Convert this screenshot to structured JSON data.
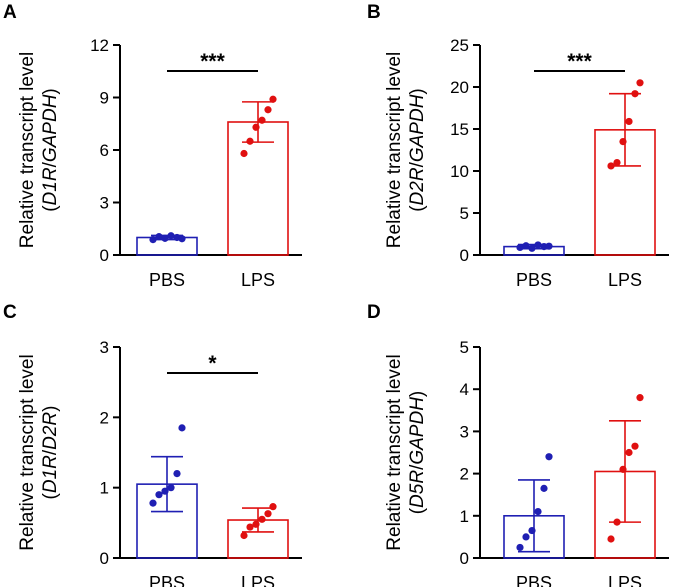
{
  "figure": {
    "colors": {
      "PBS": "#1f1fb3",
      "LPS": "#e01010",
      "axis": "#000000"
    }
  },
  "chart_data": [
    {
      "panel": "A",
      "type": "bar",
      "ylabel_line1": "Relative transcript level",
      "ylabel_gene": "D1R",
      "ylabel_sep": "/",
      "ylabel_ref": "GAPDH",
      "ylim": [
        0,
        12
      ],
      "yticks": [
        0,
        3,
        6,
        9,
        12
      ],
      "categories": [
        "PBS",
        "LPS"
      ],
      "means": [
        1.0,
        7.6
      ],
      "sd": [
        0.12,
        1.15
      ],
      "points": [
        [
          0.88,
          1.05,
          0.95,
          1.1,
          1.0,
          0.93
        ],
        [
          5.8,
          6.5,
          7.3,
          7.7,
          8.3,
          8.9
        ]
      ],
      "significance": "***"
    },
    {
      "panel": "B",
      "type": "bar",
      "ylabel_line1": "Relative transcript level",
      "ylabel_gene": "D2R",
      "ylabel_sep": "/",
      "ylabel_ref": "GAPDH",
      "ylim": [
        0,
        25
      ],
      "yticks": [
        0,
        5,
        10,
        15,
        20,
        25
      ],
      "categories": [
        "PBS",
        "LPS"
      ],
      "means": [
        1.0,
        14.9
      ],
      "sd": [
        0.25,
        4.3
      ],
      "points": [
        [
          0.9,
          1.1,
          0.8,
          1.2,
          1.0,
          1.05
        ],
        [
          10.6,
          11.0,
          13.5,
          15.9,
          19.2,
          20.5
        ]
      ],
      "significance": "***"
    },
    {
      "panel": "C",
      "type": "bar",
      "ylabel_line1": "Relative transcript level",
      "ylabel_gene": "D1R",
      "ylabel_sep": "/",
      "ylabel_ref": "D2R",
      "ylim": [
        0,
        3
      ],
      "yticks": [
        0,
        1,
        2,
        3
      ],
      "categories": [
        "PBS",
        "LPS"
      ],
      "means": [
        1.05,
        0.54
      ],
      "sd": [
        0.39,
        0.17
      ],
      "points": [
        [
          0.78,
          0.9,
          0.95,
          1.0,
          1.2,
          1.85
        ],
        [
          0.32,
          0.44,
          0.48,
          0.55,
          0.63,
          0.73
        ]
      ],
      "significance": "*"
    },
    {
      "panel": "D",
      "type": "bar",
      "ylabel_line1": "Relative transcript level",
      "ylabel_gene": "D5R",
      "ylabel_sep": "/",
      "ylabel_ref": "GAPDH",
      "ylim": [
        0,
        5
      ],
      "yticks": [
        0,
        1,
        2,
        3,
        4,
        5
      ],
      "categories": [
        "PBS",
        "LPS"
      ],
      "means": [
        1.0,
        2.05
      ],
      "sd": [
        0.85,
        1.2
      ],
      "points": [
        [
          0.25,
          0.5,
          0.65,
          1.1,
          1.65,
          2.4
        ],
        [
          0.45,
          0.85,
          2.1,
          2.5,
          2.65,
          3.8
        ]
      ],
      "significance": ""
    }
  ]
}
